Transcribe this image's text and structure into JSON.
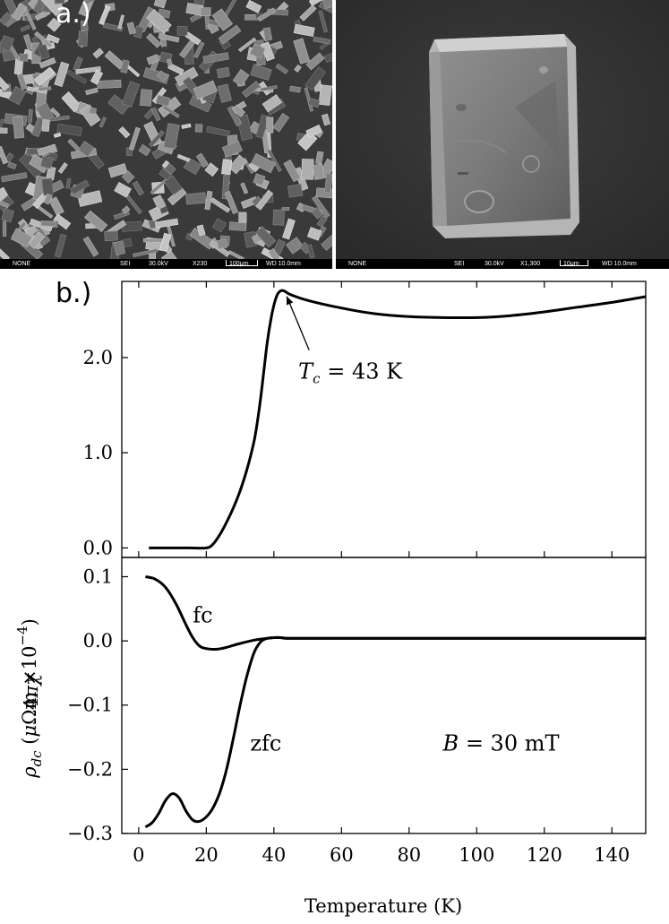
{
  "figure": {
    "panel_a_label": "a.)",
    "panel_b_label": "b.)"
  },
  "sem_left": {
    "footer": {
      "signal": "NONE",
      "detector": "SEI",
      "voltage": "30.0kV",
      "magnification": "X230",
      "scale": "100μm",
      "working_distance": "WD 10.0mm"
    }
  },
  "sem_right": {
    "footer": {
      "signal": "NONE",
      "detector": "SEI",
      "voltage": "30.0kV",
      "magnification": "X1,300",
      "scale": "10μm",
      "working_distance": "WD 10.0mm"
    }
  },
  "chart_data": [
    {
      "type": "line",
      "xlabel": "",
      "ylabel": "ρ_dc (μΩm ×10⁻⁴)",
      "xlim": [
        -5,
        150
      ],
      "ylim": [
        -0.1,
        2.8
      ],
      "y_ticks": [
        "0.0",
        "1.0",
        "2.0"
      ],
      "y_tick_values": [
        0.0,
        1.0,
        2.0
      ],
      "grid": false,
      "series": [
        {
          "x": [
            3,
            15,
            20,
            22,
            24,
            26,
            28,
            30,
            32,
            34,
            35,
            36,
            37,
            38,
            39,
            40,
            41,
            42,
            43,
            45,
            50,
            60,
            70,
            80,
            90,
            100,
            110,
            120,
            130,
            140,
            150
          ],
          "y": [
            0.0,
            0.0,
            0.0,
            0.04,
            0.14,
            0.27,
            0.42,
            0.6,
            0.82,
            1.1,
            1.3,
            1.55,
            1.85,
            2.15,
            2.38,
            2.55,
            2.66,
            2.7,
            2.7,
            2.66,
            2.6,
            2.52,
            2.46,
            2.43,
            2.42,
            2.42,
            2.44,
            2.48,
            2.53,
            2.58,
            2.64
          ]
        }
      ],
      "annotations": [
        {
          "text": "T_c = 43 K",
          "x": 43,
          "y": 2.7
        }
      ]
    },
    {
      "type": "line",
      "xlabel": "Temperature (K)",
      "ylabel": "4πχ",
      "xlim": [
        -5,
        150
      ],
      "ylim": [
        -0.3,
        0.13
      ],
      "x_ticks": [
        "0",
        "20",
        "40",
        "60",
        "80",
        "100",
        "120",
        "140"
      ],
      "x_tick_values": [
        0,
        20,
        40,
        60,
        80,
        100,
        120,
        140
      ],
      "y_ticks": [
        "0.1",
        "0.0",
        "−0.1",
        "−0.2",
        "−0.3"
      ],
      "y_tick_values": [
        0.1,
        0.0,
        -0.1,
        -0.2,
        -0.3
      ],
      "grid": false,
      "series": [
        {
          "name": "fc",
          "x": [
            2,
            5,
            8,
            11,
            14,
            16,
            18,
            20,
            23,
            26,
            30,
            35,
            40,
            42,
            45,
            60,
            80,
            100,
            120,
            140,
            150
          ],
          "y": [
            0.1,
            0.096,
            0.083,
            0.058,
            0.025,
            0.005,
            -0.008,
            -0.012,
            -0.013,
            -0.01,
            -0.004,
            0.002,
            0.005,
            0.005,
            0.004,
            0.004,
            0.004,
            0.004,
            0.004,
            0.004,
            0.004
          ]
        },
        {
          "name": "zfc",
          "x": [
            2,
            4,
            6,
            8,
            10,
            12,
            14,
            16,
            18,
            20,
            22,
            24,
            26,
            28,
            30,
            32,
            34,
            36,
            38,
            40,
            42,
            45,
            60,
            80,
            100,
            120,
            140,
            150
          ],
          "y": [
            -0.29,
            -0.283,
            -0.268,
            -0.248,
            -0.238,
            -0.245,
            -0.265,
            -0.279,
            -0.281,
            -0.274,
            -0.26,
            -0.236,
            -0.2,
            -0.152,
            -0.1,
            -0.055,
            -0.02,
            -0.002,
            0.004,
            0.005,
            0.005,
            0.004,
            0.004,
            0.004,
            0.004,
            0.004,
            0.004,
            0.004
          ]
        }
      ],
      "annotations": [
        {
          "text": "fc",
          "x": 16,
          "y": 0.04
        },
        {
          "text": "zfc",
          "x": 33,
          "y": -0.16
        },
        {
          "text": "B = 30 mT",
          "x": 90,
          "y": -0.16
        }
      ]
    }
  ]
}
